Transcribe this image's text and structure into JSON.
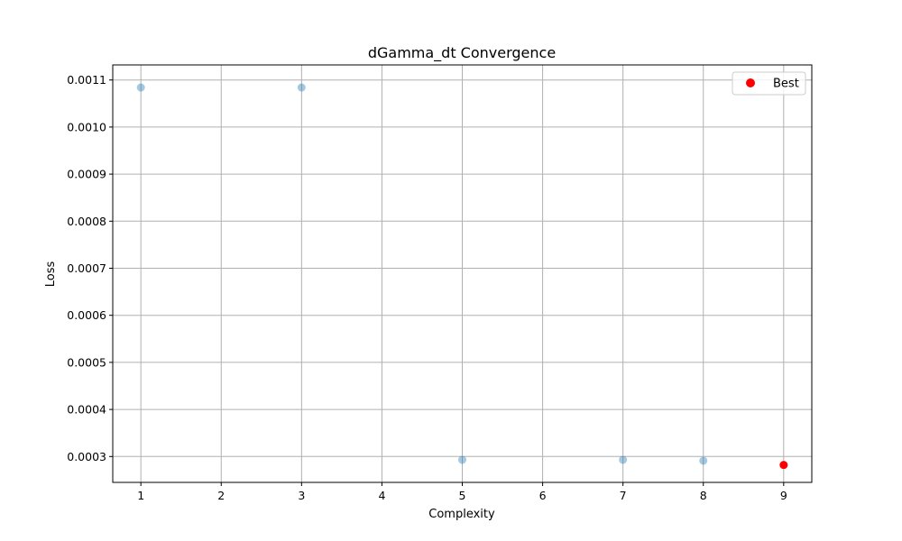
{
  "chart_data": {
    "type": "scatter",
    "title": "dGamma_dt Convergence",
    "xlabel": "Complexity",
    "ylabel": "Loss",
    "xlim": [
      0.65,
      9.35
    ],
    "ylim": [
      0.000245,
      0.001132
    ],
    "x_ticks": [
      1,
      2,
      3,
      4,
      5,
      6,
      7,
      8,
      9
    ],
    "y_ticks": [
      0.0003,
      0.0004,
      0.0005,
      0.0006,
      0.0007,
      0.0008,
      0.0009,
      0.001,
      0.0011
    ],
    "y_tick_labels": [
      "0.0003",
      "0.0004",
      "0.0005",
      "0.0006",
      "0.0007",
      "0.0008",
      "0.0009",
      "0.0010",
      "0.0011"
    ],
    "grid": true,
    "legend": {
      "position": "top-right",
      "entries": [
        "Best"
      ]
    },
    "series": [
      {
        "color": "#1f77b4",
        "opacity": 0.4,
        "points": [
          {
            "x": 1,
            "y": 0.001084
          },
          {
            "x": 3,
            "y": 0.001084
          },
          {
            "x": 5,
            "y": 0.000293
          },
          {
            "x": 7,
            "y": 0.000293
          },
          {
            "x": 8,
            "y": 0.000291
          }
        ]
      },
      {
        "name": "Best",
        "color": "#ff0000",
        "opacity": 1,
        "points": [
          {
            "x": 9,
            "y": 0.000282
          }
        ]
      }
    ]
  }
}
